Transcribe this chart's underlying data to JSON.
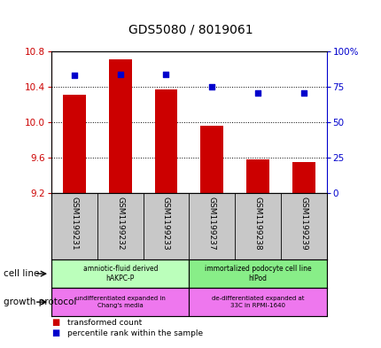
{
  "title": "GDS5080 / 8019061",
  "samples": [
    "GSM1199231",
    "GSM1199232",
    "GSM1199233",
    "GSM1199237",
    "GSM1199238",
    "GSM1199239"
  ],
  "bar_values": [
    10.31,
    10.71,
    10.37,
    9.96,
    9.58,
    9.55
  ],
  "scatter_values": [
    83,
    84,
    84,
    75,
    71,
    71
  ],
  "ylim_left": [
    9.2,
    10.8
  ],
  "ylim_right": [
    0,
    100
  ],
  "yticks_left": [
    9.2,
    9.6,
    10.0,
    10.4,
    10.8
  ],
  "yticks_right": [
    0,
    25,
    50,
    75,
    100
  ],
  "bar_color": "#cc0000",
  "scatter_color": "#0000cc",
  "bar_bottom": 9.2,
  "cell_line_groups": [
    {
      "label": "amniotic-fluid derived\nhAKPC-P",
      "color": "#bbffbb",
      "start": 0,
      "end": 3
    },
    {
      "label": "immortalized podocyte cell line\nhIPod",
      "color": "#88ee88",
      "start": 3,
      "end": 6
    }
  ],
  "growth_protocol_groups": [
    {
      "label": "undifferentiated expanded in\nChang's media",
      "color": "#ee77ee",
      "start": 0,
      "end": 3
    },
    {
      "label": "de-differentiated expanded at\n33C in RPMI-1640",
      "color": "#ee77ee",
      "start": 3,
      "end": 6
    }
  ],
  "title_fontsize": 10,
  "left_tick_color": "#cc0000",
  "right_tick_color": "#0000cc"
}
